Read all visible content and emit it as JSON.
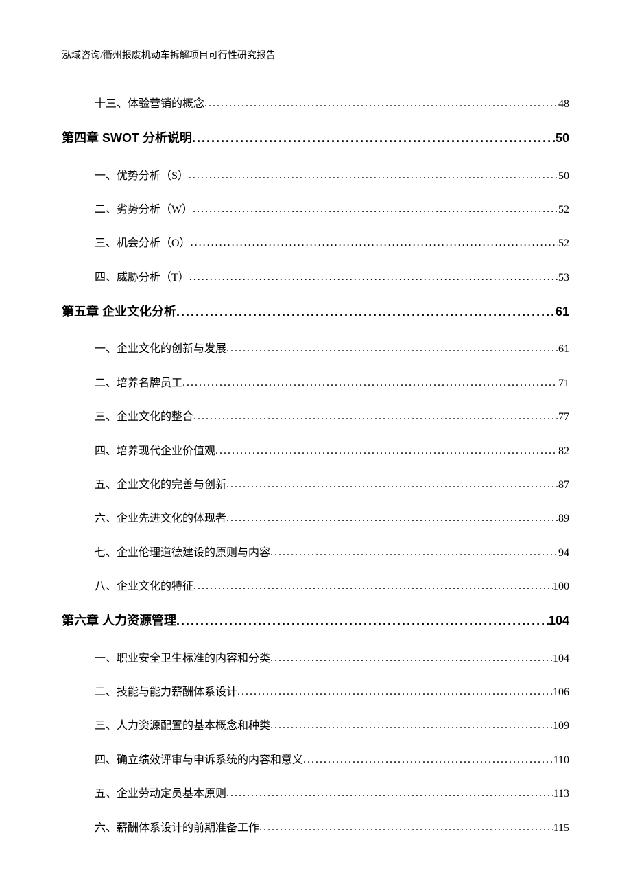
{
  "header": "泓域咨询/衢州报废机动车拆解项目可行性研究报告",
  "toc": [
    {
      "type": "sub",
      "label": "十三、体验营销的概念",
      "page": "48"
    },
    {
      "type": "chapter",
      "label": "第四章 SWOT 分析说明",
      "page": "50"
    },
    {
      "type": "sub",
      "label": "一、优势分析（S）",
      "page": "50"
    },
    {
      "type": "sub",
      "label": "二、劣势分析（W）",
      "page": "52"
    },
    {
      "type": "sub",
      "label": "三、机会分析（O）",
      "page": "52"
    },
    {
      "type": "sub",
      "label": "四、威胁分析（T）",
      "page": "53"
    },
    {
      "type": "chapter",
      "label": "第五章 企业文化分析",
      "page": "61"
    },
    {
      "type": "sub",
      "label": "一、企业文化的创新与发展",
      "page": "61"
    },
    {
      "type": "sub",
      "label": "二、培养名牌员工",
      "page": "71"
    },
    {
      "type": "sub",
      "label": "三、企业文化的整合",
      "page": "77"
    },
    {
      "type": "sub",
      "label": "四、培养现代企业价值观",
      "page": "82"
    },
    {
      "type": "sub",
      "label": "五、企业文化的完善与创新",
      "page": "87"
    },
    {
      "type": "sub",
      "label": "六、企业先进文化的体现者",
      "page": "89"
    },
    {
      "type": "sub",
      "label": "七、企业伦理道德建设的原则与内容",
      "page": "94"
    },
    {
      "type": "sub",
      "label": "八、企业文化的特征",
      "page": "100"
    },
    {
      "type": "chapter",
      "label": "第六章 人力资源管理",
      "page": "104"
    },
    {
      "type": "sub",
      "label": "一、职业安全卫生标准的内容和分类",
      "page": "104"
    },
    {
      "type": "sub",
      "label": "二、技能与能力薪酬体系设计",
      "page": "106"
    },
    {
      "type": "sub",
      "label": "三、人力资源配置的基本概念和种类",
      "page": "109"
    },
    {
      "type": "sub",
      "label": "四、确立绩效评审与申诉系统的内容和意义",
      "page": "110"
    },
    {
      "type": "sub",
      "label": "五、企业劳动定员基本原则",
      "page": "113"
    },
    {
      "type": "sub",
      "label": "六、薪酬体系设计的前期准备工作",
      "page": "115"
    }
  ]
}
